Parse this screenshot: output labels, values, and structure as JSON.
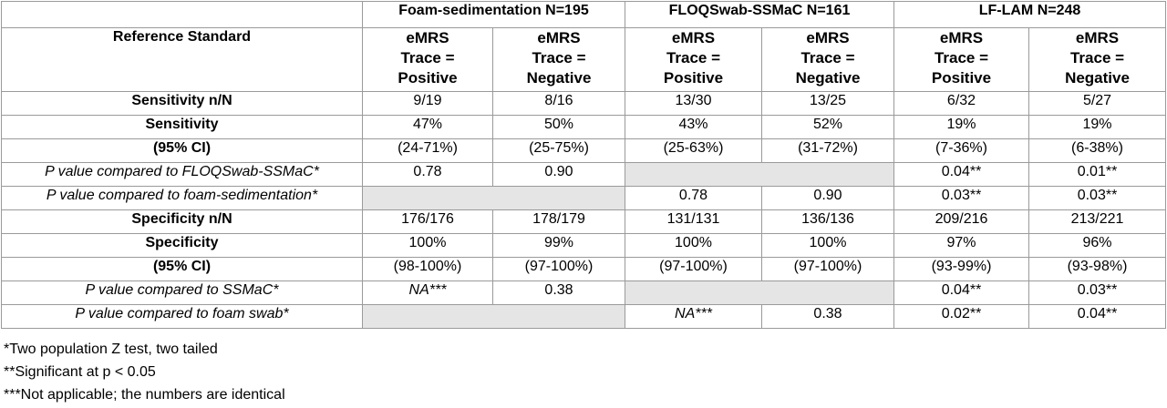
{
  "groups": [
    {
      "label": "Foam-sedimentation N=195"
    },
    {
      "label": "FLOQSwab-SSMaC N=161"
    },
    {
      "label": "LF-LAM N=248"
    }
  ],
  "reference_label": "Reference Standard",
  "sub_headers": [
    [
      "eMRS",
      "Trace =",
      "Positive"
    ],
    [
      "eMRS",
      "Trace =",
      "Negative"
    ],
    [
      "eMRS",
      "Trace =",
      "Positive"
    ],
    [
      "eMRS",
      "Trace =",
      "Negative"
    ],
    [
      "eMRS",
      "Trace =",
      "Positive"
    ],
    [
      "eMRS",
      "Trace =",
      "Negative"
    ]
  ],
  "rows": [
    {
      "label": "Sensitivity n/N",
      "style": "bold",
      "cells": [
        "9/19",
        "8/16",
        "13/30",
        "13/25",
        "6/32",
        "5/27"
      ]
    },
    {
      "label": "Sensitivity",
      "style": "bold",
      "cells": [
        "47%",
        "50%",
        "43%",
        "52%",
        "19%",
        "19%"
      ]
    },
    {
      "label": "(95% CI)",
      "style": "bold",
      "cells": [
        "(24-71%)",
        "(25-75%)",
        "(25-63%)",
        "(31-72%)",
        "(7-36%)",
        "(6-38%)"
      ]
    },
    {
      "label": "P value compared to FLOQSwab-SSMaC*",
      "style": "italic",
      "cells": [
        "0.78",
        "0.90",
        "",
        "",
        "0.04**",
        "0.01**"
      ]
    },
    {
      "label": "P value compared to foam-sedimentation*",
      "style": "italic",
      "cells": [
        "",
        "",
        "0.78",
        "0.90",
        "0.03**",
        "0.03**"
      ]
    },
    {
      "label": "Specificity n/N",
      "style": "bold",
      "cells": [
        "176/176",
        "178/179",
        "131/131",
        "136/136",
        "209/216",
        "213/221"
      ]
    },
    {
      "label": "Specificity",
      "style": "bold",
      "cells": [
        "100%",
        "99%",
        "100%",
        "100%",
        "97%",
        "96%"
      ]
    },
    {
      "label": "(95% CI)",
      "style": "bold",
      "cells": [
        "(98-100%)",
        "(97-100%)",
        "(97-100%)",
        "(97-100%)",
        "(93-99%)",
        "(93-98%)"
      ]
    },
    {
      "label": "P value compared to SSMaC*",
      "style": "italic",
      "cells": [
        "NA***",
        "0.38",
        "",
        "",
        "0.04**",
        "0.03**"
      ]
    },
    {
      "label": "P value compared to foam swab*",
      "style": "italic",
      "cells": [
        "",
        "",
        "NA***",
        "0.38",
        "0.02**",
        "0.04**"
      ]
    }
  ],
  "notes": [
    "*Two population Z test, two tailed",
    "**Significant at p < 0.05",
    "***Not applicable; the numbers are identical"
  ]
}
